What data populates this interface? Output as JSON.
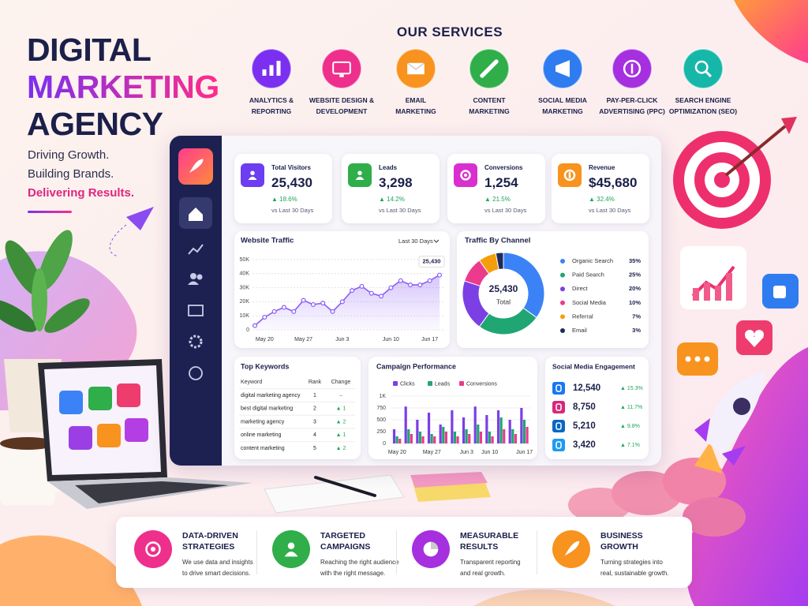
{
  "header": {
    "title_lines": [
      "DIGITAL",
      "MARKETING",
      "AGENCY"
    ],
    "taglines": [
      "Driving Growth.",
      "Building Brands.",
      "Delivering Results."
    ]
  },
  "services": {
    "heading": "OUR SERVICES",
    "items": [
      {
        "lines": [
          "ANALYTICS &",
          "REPORTING"
        ],
        "color": "#7b2ff0"
      },
      {
        "lines": [
          "WEBSITE DESIGN &",
          "DEVELOPMENT"
        ],
        "color": "#ee2f8c"
      },
      {
        "lines": [
          "EMAIL",
          "MARKETING"
        ],
        "color": "#f7931e"
      },
      {
        "lines": [
          "CONTENT",
          "MARKETING"
        ],
        "color": "#2fae4a"
      },
      {
        "lines": [
          "SOCIAL MEDIA",
          "MARKETING"
        ],
        "color": "#2f7cf0"
      },
      {
        "lines": [
          "PAY-PER-CLICK",
          "ADVERTISING (PPC)"
        ],
        "color": "#a62fe0"
      },
      {
        "lines": [
          "SEARCH ENGINE",
          "OPTIMIZATION (SEO)"
        ],
        "color": "#16b7a8"
      }
    ]
  },
  "kpis": [
    {
      "label": "Total Visitors",
      "value": "25,430",
      "change": "▲ 18.6%",
      "period": "vs Last 30 Days",
      "color": "#6d3df0"
    },
    {
      "label": "Leads",
      "value": "3,298",
      "change": "▲ 14.2%",
      "period": "vs Last 30 Days",
      "color": "#2fae4a"
    },
    {
      "label": "Conversions",
      "value": "1,254",
      "change": "▲ 21.5%",
      "period": "vs Last 30 Days",
      "color": "#d92fd0"
    },
    {
      "label": "Revenue",
      "value": "$45,680",
      "change": "▲ 32.4%",
      "period": "vs Last 30 Days",
      "color": "#f7931e"
    }
  ],
  "website_traffic": {
    "type": "line",
    "title": "Website Traffic",
    "range": "Last 30 Days",
    "annotation": "25,430",
    "categories": [
      null,
      "May 20",
      null,
      null,
      null,
      "May 27",
      null,
      null,
      null,
      "Jun 3",
      null,
      null,
      null,
      null,
      "Jun 10",
      null,
      null,
      null,
      "Jun 17",
      null
    ],
    "values": [
      3000,
      9000,
      13000,
      16000,
      13000,
      21000,
      18000,
      19000,
      13000,
      20000,
      28000,
      31000,
      26000,
      24000,
      30000,
      35000,
      32000,
      32000,
      35000,
      39000
    ],
    "color": "#8b5cf6",
    "ylim": [
      0,
      50000
    ],
    "yticks": [
      0,
      {
        "value": 10000,
        "label": "10K"
      },
      {
        "value": 20000,
        "label": "20K"
      },
      {
        "value": 30000,
        "label": "30K"
      },
      {
        "value": 40000,
        "label": "40K"
      },
      {
        "value": 50000,
        "label": "50K"
      }
    ],
    "grid": true
  },
  "traffic_by_channel": {
    "type": "pie",
    "title": "Traffic By Channel",
    "center_value": "25,430",
    "center_label": "Total",
    "categories": [
      "Organic Search",
      "Paid Search",
      "Direct",
      "Social Media",
      "Referral",
      "Email"
    ],
    "values": [
      35,
      25,
      20,
      10,
      7,
      3
    ],
    "value_labels": [
      "35%",
      "25%",
      "20%",
      "10%",
      "7%",
      "3%"
    ],
    "colors": [
      "#3b82f6",
      "#1fa672",
      "#7b3fe4",
      "#ec3a8c",
      "#f59e0b",
      "#1e2a5a"
    ]
  },
  "top_keywords": {
    "title": "Top Keywords",
    "columns": [
      "Keyword",
      "Rank",
      "Change"
    ],
    "rows": [
      [
        "digital marketing agency",
        "1",
        "–"
      ],
      [
        "best digital marketing",
        "2",
        "▲ 1"
      ],
      [
        "marketing agency",
        "3",
        "▲ 2"
      ],
      [
        "online marketing",
        "4",
        "▲ 1"
      ],
      [
        "content marketing",
        "5",
        "▲ 2"
      ]
    ]
  },
  "campaign_performance": {
    "type": "bar",
    "title": "Campaign Performance",
    "categories": [
      "May 20",
      null,
      null,
      "May 27",
      null,
      null,
      "Jun 3",
      null,
      "Jun 10",
      null,
      null,
      "Jun 17"
    ],
    "series": [
      {
        "name": "Clicks",
        "color": "#7b3fe4",
        "values": [
          300,
          780,
          500,
          650,
          400,
          700,
          550,
          780,
          600,
          700,
          500,
          750
        ]
      },
      {
        "name": "Leads",
        "color": "#1fa672",
        "values": [
          150,
          300,
          250,
          200,
          350,
          250,
          300,
          400,
          250,
          550,
          300,
          500
        ]
      },
      {
        "name": "Conversions",
        "color": "#ec3a8c",
        "values": [
          100,
          200,
          150,
          150,
          250,
          150,
          200,
          250,
          150,
          300,
          200,
          350
        ]
      }
    ],
    "ylim": [
      0,
      1000
    ],
    "yticks": [
      0,
      250,
      500,
      750,
      {
        "value": 1000,
        "label": "1K"
      }
    ]
  },
  "social_engagement": {
    "title": "Social Media Engagement",
    "rows": [
      {
        "value": "12,540",
        "change": "▲ 15.3%",
        "color": "#1877f2"
      },
      {
        "value": "8,750",
        "change": "▲ 11.7%",
        "color": "#d6297a"
      },
      {
        "value": "5,210",
        "change": "▲ 9.8%",
        "color": "#0a66c2"
      },
      {
        "value": "3,420",
        "change": "▲ 7.1%",
        "color": "#1d9bf0"
      }
    ]
  },
  "features": [
    {
      "title_lines": [
        "DATA-DRIVEN",
        "STRATEGIES"
      ],
      "desc_lines": [
        "We use data and insights",
        "to drive smart decisions."
      ],
      "color": "#ee2f8c"
    },
    {
      "title_lines": [
        "TARGETED",
        "CAMPAIGNS"
      ],
      "desc_lines": [
        "Reaching the right audience",
        "with the right message."
      ],
      "color": "#2fae4a"
    },
    {
      "title_lines": [
        "MEASURABLE",
        "RESULTS"
      ],
      "desc_lines": [
        "Transparent reporting",
        "and real growth."
      ],
      "color": "#a62fe0"
    },
    {
      "title_lines": [
        "BUSINESS",
        "GROWTH"
      ],
      "desc_lines": [
        "Turning strategies into",
        "real, sustainable growth."
      ],
      "color": "#f7931e"
    }
  ]
}
